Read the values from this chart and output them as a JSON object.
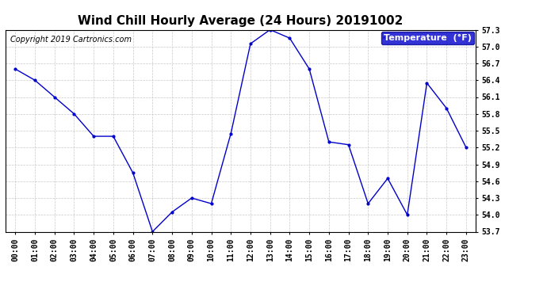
{
  "title": "Wind Chill Hourly Average (24 Hours) 20191002",
  "copyright": "Copyright 2019 Cartronics.com",
  "legend_label": "Temperature  (°F)",
  "hours": [
    0,
    1,
    2,
    3,
    4,
    5,
    6,
    7,
    8,
    9,
    10,
    11,
    12,
    13,
    14,
    15,
    16,
    17,
    18,
    19,
    20,
    21,
    22,
    23
  ],
  "x_labels": [
    "00:00",
    "01:00",
    "02:00",
    "03:00",
    "04:00",
    "05:00",
    "06:00",
    "07:00",
    "08:00",
    "09:00",
    "10:00",
    "11:00",
    "12:00",
    "13:00",
    "14:00",
    "15:00",
    "16:00",
    "17:00",
    "18:00",
    "19:00",
    "20:00",
    "21:00",
    "22:00",
    "23:00"
  ],
  "values": [
    56.6,
    56.4,
    56.1,
    55.8,
    55.4,
    55.4,
    54.75,
    53.7,
    54.05,
    54.3,
    54.2,
    55.45,
    57.05,
    57.3,
    57.15,
    56.6,
    55.3,
    55.25,
    54.2,
    54.65,
    54.0,
    56.35,
    55.9,
    55.2
  ],
  "ylim_min": 53.7,
  "ylim_max": 57.3,
  "yticks": [
    53.7,
    54.0,
    54.3,
    54.6,
    54.9,
    55.2,
    55.5,
    55.8,
    56.1,
    56.4,
    56.7,
    57.0,
    57.3
  ],
  "ytick_labels": [
    "53.7",
    "54.0",
    "54.3",
    "54.6",
    "54.9",
    "55.2",
    "55.5",
    "55.8",
    "56.1",
    "56.4",
    "56.7",
    "57.0",
    "57.3"
  ],
  "line_color": "#0000cc",
  "marker_color": "#0000cc",
  "bg_color": "#ffffff",
  "plot_bg_color": "#ffffff",
  "grid_color": "#bbbbbb",
  "title_fontsize": 11,
  "copyright_fontsize": 7,
  "tick_fontsize": 7,
  "legend_bg": "#0000cc",
  "legend_fg": "#ffffff",
  "legend_fontsize": 8
}
